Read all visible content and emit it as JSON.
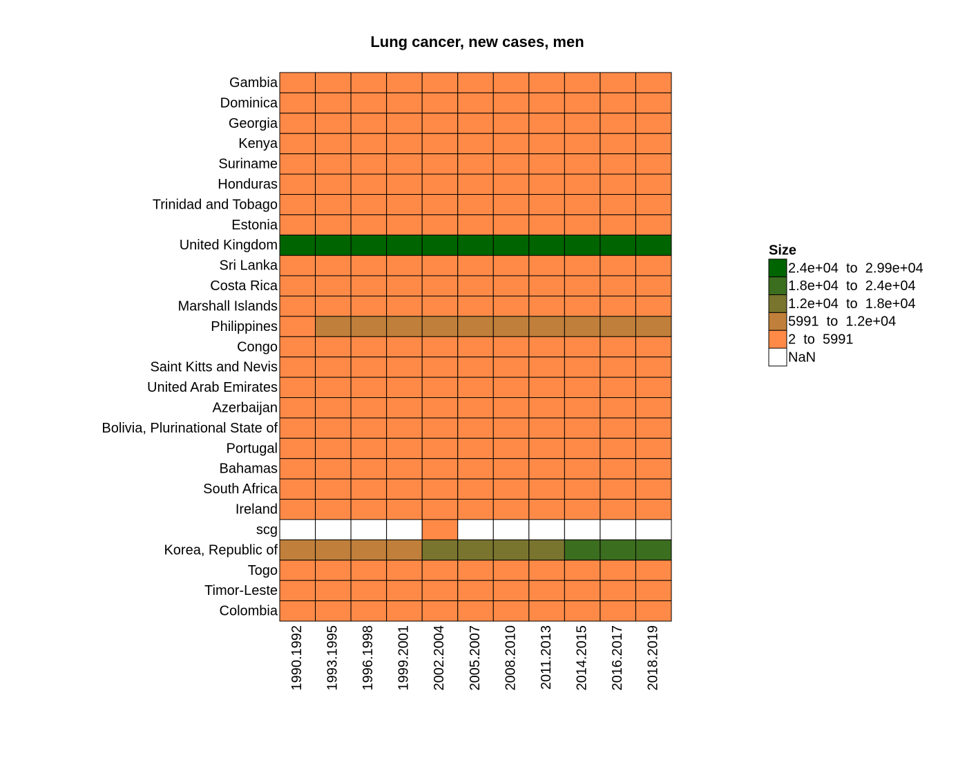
{
  "chart_data": {
    "type": "heatmap",
    "title": "Lung cancer, new cases, men",
    "columns": [
      "1990.1992",
      "1993.1995",
      "1996.1998",
      "1999.2001",
      "2002.2004",
      "2005.2007",
      "2008.2010",
      "2011.2013",
      "2014.2015",
      "2016.2017",
      "2018.2019"
    ],
    "rows": [
      "Gambia",
      "Dominica",
      "Georgia",
      "Kenya",
      "Suriname",
      "Honduras",
      "Trinidad and Tobago",
      "Estonia",
      "United Kingdom",
      "Sri Lanka",
      "Costa Rica",
      "Marshall Islands",
      "Philippines",
      "Congo",
      "Saint Kitts and Nevis",
      "United Arab Emirates",
      "Azerbaijan",
      "Bolivia, Plurinational State of",
      "Portugal",
      "Bahamas",
      "South Africa",
      "Ireland",
      "scg",
      "Korea, Republic of",
      "Togo",
      "Timor-Leste",
      "Colombia"
    ],
    "values": [
      [
        10,
        11,
        12,
        13,
        14,
        15,
        16,
        17,
        18,
        19,
        20
      ],
      [
        8,
        8,
        9,
        9,
        10,
        10,
        11,
        11,
        12,
        12,
        13
      ],
      [
        1400,
        1500,
        1450,
        1400,
        1350,
        1300,
        1350,
        1400,
        1450,
        1500,
        1550
      ],
      [
        300,
        350,
        400,
        450,
        500,
        550,
        600,
        650,
        700,
        750,
        800
      ],
      [
        30,
        32,
        34,
        36,
        38,
        40,
        42,
        44,
        46,
        48,
        50
      ],
      [
        120,
        130,
        140,
        150,
        160,
        170,
        180,
        190,
        200,
        210,
        220
      ],
      [
        90,
        95,
        100,
        105,
        110,
        115,
        120,
        125,
        130,
        135,
        140
      ],
      [
        550,
        560,
        570,
        580,
        590,
        600,
        590,
        580,
        570,
        560,
        550
      ],
      [
        29000,
        28000,
        27500,
        27000,
        26500,
        26000,
        25500,
        25500,
        25000,
        25000,
        25500
      ],
      [
        700,
        800,
        900,
        1000,
        1100,
        1200,
        1300,
        1400,
        1500,
        1600,
        1700
      ],
      [
        180,
        190,
        200,
        210,
        220,
        230,
        240,
        250,
        260,
        270,
        280
      ],
      [
        4,
        4,
        5,
        5,
        5,
        6,
        6,
        6,
        7,
        7,
        7
      ],
      [
        5500,
        6500,
        7000,
        7500,
        8000,
        8500,
        9000,
        9500,
        10000,
        10500,
        11000
      ],
      [
        40,
        45,
        50,
        55,
        60,
        65,
        70,
        75,
        80,
        85,
        90
      ],
      [
        3,
        3,
        3,
        4,
        4,
        4,
        4,
        5,
        5,
        5,
        5
      ],
      [
        80,
        90,
        100,
        110,
        120,
        130,
        140,
        150,
        160,
        170,
        180
      ],
      [
        900,
        950,
        1000,
        1050,
        1100,
        1150,
        1200,
        1250,
        1300,
        1350,
        1400
      ],
      [
        250,
        270,
        290,
        310,
        330,
        350,
        370,
        390,
        410,
        430,
        450
      ],
      [
        2500,
        2700,
        2900,
        3100,
        3300,
        3500,
        3700,
        3900,
        4100,
        4300,
        4500
      ],
      [
        35,
        37,
        39,
        41,
        43,
        45,
        47,
        49,
        51,
        53,
        55
      ],
      [
        3000,
        3200,
        3400,
        3600,
        3800,
        4000,
        4200,
        4400,
        4600,
        4800,
        5000
      ],
      [
        1000,
        1020,
        1040,
        1060,
        1080,
        1100,
        1120,
        1140,
        1160,
        1180,
        1200
      ],
      [
        null,
        null,
        null,
        null,
        3500,
        null,
        null,
        null,
        null,
        null,
        null
      ],
      [
        7500,
        9000,
        10000,
        11000,
        12500,
        14000,
        15500,
        17000,
        18500,
        19500,
        20500
      ],
      [
        90,
        95,
        100,
        105,
        110,
        115,
        120,
        125,
        130,
        135,
        140
      ],
      [
        25,
        26,
        27,
        28,
        29,
        30,
        31,
        32,
        33,
        34,
        35
      ],
      [
        2000,
        2200,
        2400,
        2600,
        2800,
        3000,
        3200,
        3400,
        3600,
        3800,
        4000
      ]
    ],
    "legend_title": "Size",
    "legend": [
      {
        "label": "2.4e+04  to  2.99e+04",
        "min": 24000,
        "max": 29900,
        "color": "#006400"
      },
      {
        "label": "1.8e+04  to  2.4e+04",
        "min": 18000,
        "max": 24000,
        "color": "#3c6e1f"
      },
      {
        "label": "1.2e+04  to  1.8e+04",
        "min": 12000,
        "max": 18000,
        "color": "#7a752e"
      },
      {
        "label": "5991  to  1.2e+04",
        "min": 5991,
        "max": 12000,
        "color": "#c07f3a"
      },
      {
        "label": "2  to  5991",
        "min": 2,
        "max": 5991,
        "color": "#ff8a47"
      },
      {
        "label": "NaN",
        "color": "#ffffff"
      }
    ]
  }
}
